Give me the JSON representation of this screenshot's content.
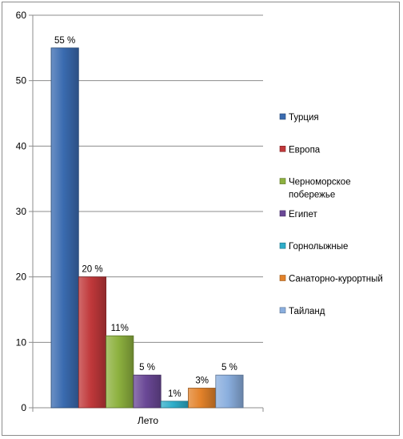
{
  "chart_data": {
    "type": "bar",
    "title": "",
    "xlabel": "",
    "ylabel": "",
    "categories": [
      "Лето"
    ],
    "ylim": [
      0,
      60
    ],
    "yticks": [
      0,
      10,
      20,
      30,
      40,
      50,
      60
    ],
    "grid": true,
    "legend_position": "right",
    "series": [
      {
        "name": "Турция",
        "values": [
          55
        ],
        "label": "55 %",
        "color": "#3a6bb0"
      },
      {
        "name": "Европа",
        "values": [
          20
        ],
        "label": "20 %",
        "color": "#c0383a"
      },
      {
        "name": "Черноморское побережье",
        "legend_lines": [
          "Черноморское",
          "побережье"
        ],
        "values": [
          11
        ],
        "label": "11%",
        "color": "#8db13f"
      },
      {
        "name": "Египет",
        "values": [
          5
        ],
        "label": "5 %",
        "color": "#6a4896"
      },
      {
        "name": "Горнолыжные",
        "values": [
          1
        ],
        "label": "1%",
        "color": "#2eadc9"
      },
      {
        "name": "Санаторно-курортный",
        "values": [
          3
        ],
        "label": "3%",
        "color": "#e3822a"
      },
      {
        "name": "Тайланд",
        "values": [
          5
        ],
        "label": "5 %",
        "color": "#8aaede"
      }
    ]
  }
}
